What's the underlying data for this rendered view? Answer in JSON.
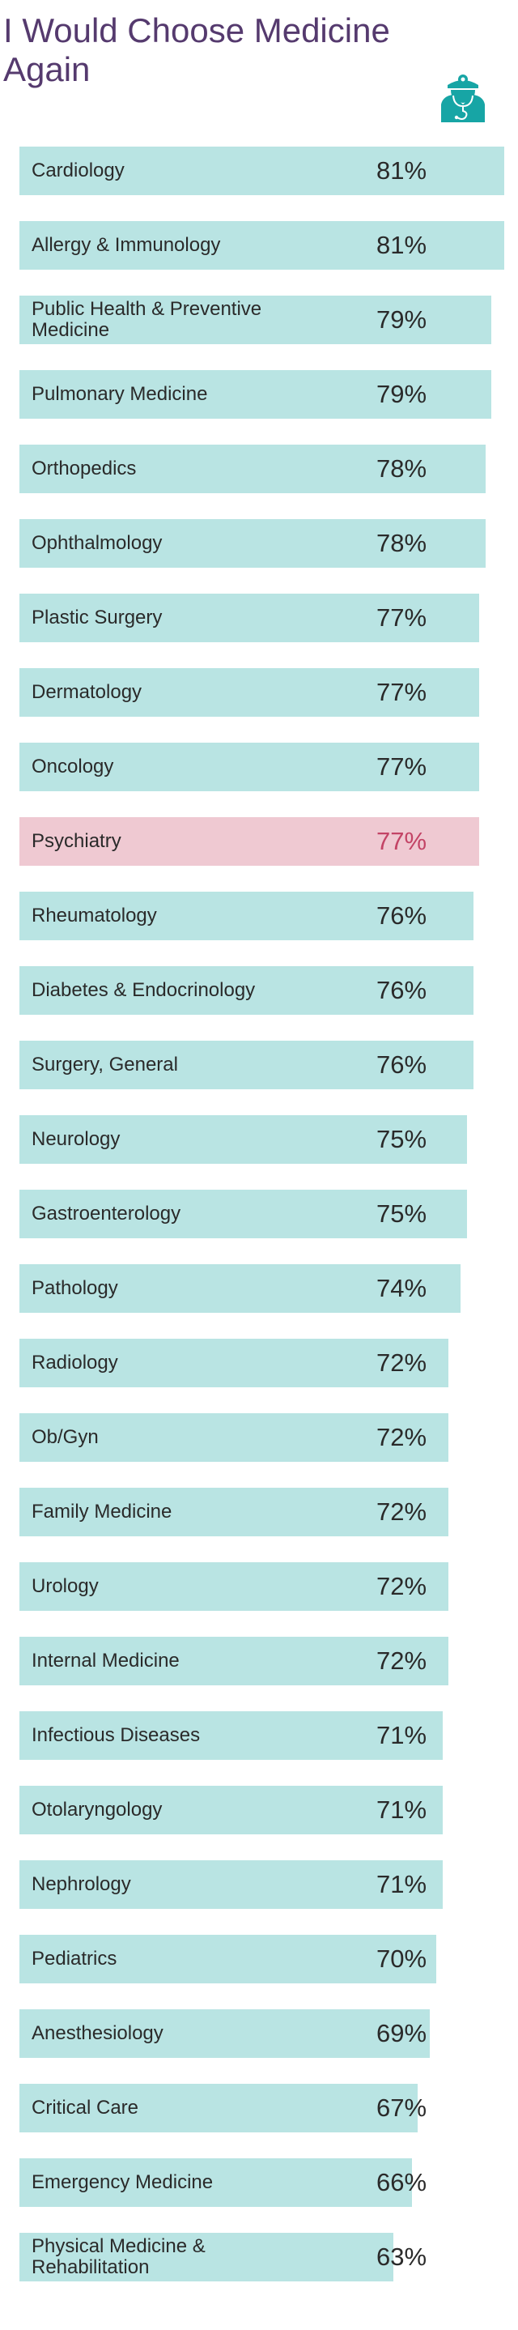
{
  "chart_data": {
    "type": "bar",
    "orientation": "horizontal",
    "title": "I Would Choose Medicine Again",
    "icon": "doctor-stethoscope-icon",
    "colors": {
      "bar": "#b9e4e3",
      "highlight_bar": "#efc9d2",
      "highlight_text": "#c34466",
      "title": "#553a6e",
      "icon": "#17a5a5"
    },
    "highlight": "Psychiatry",
    "categories": [
      "Cardiology",
      "Allergy & Immunology",
      "Public Health & Preventive Medicine",
      "Pulmonary Medicine",
      "Orthopedics",
      "Ophthalmology",
      "Plastic Surgery",
      "Dermatology",
      "Oncology",
      "Psychiatry",
      "Rheumatology",
      "Diabetes & Endocrinology",
      "Surgery, General",
      "Neurology",
      "Gastroenterology",
      "Pathology",
      "Radiology",
      "Ob/Gyn",
      "Family Medicine",
      "Urology",
      "Internal Medicine",
      "Infectious Diseases",
      "Otolaryngology",
      "Nephrology",
      "Pediatrics",
      "Anesthesiology",
      "Critical Care",
      "Emergency Medicine",
      "Physical Medicine & Rehabilitation"
    ],
    "values": [
      81,
      81,
      79,
      79,
      78,
      78,
      77,
      77,
      77,
      77,
      76,
      76,
      76,
      75,
      75,
      74,
      72,
      72,
      72,
      72,
      72,
      71,
      71,
      71,
      70,
      69,
      67,
      66,
      63
    ],
    "labels": [
      "81%",
      "81%",
      "79%",
      "79%",
      "78%",
      "78%",
      "77%",
      "77%",
      "77%",
      "77%",
      "76%",
      "76%",
      "76%",
      "75%",
      "75%",
      "74%",
      "72%",
      "72%",
      "72%",
      "72%",
      "72%",
      "71%",
      "71%",
      "71%",
      "70%",
      "69%",
      "67%",
      "66%",
      "63%"
    ],
    "unit": "%"
  }
}
